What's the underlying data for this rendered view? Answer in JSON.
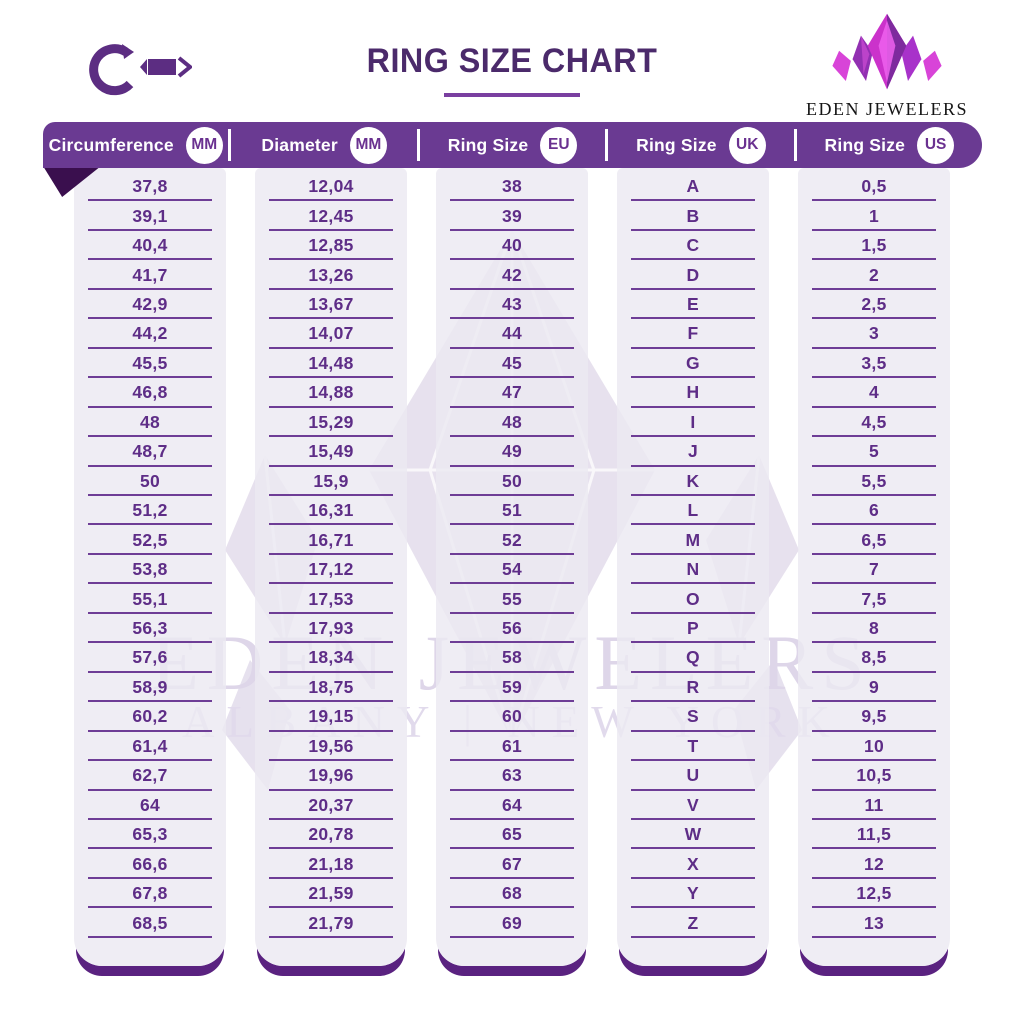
{
  "title": "RING SIZE CHART",
  "logo": {
    "name": "EDEN JEWELERS",
    "location": "ALBANY | NEW YORK"
  },
  "watermark": {
    "line1": "EDEN JEWELERS",
    "line2": "ALBANY | NEW YORK"
  },
  "colors": {
    "band_purple": "#6a3a92",
    "value_purple": "#5e2d87",
    "title_purple": "#4b2a6b",
    "fold_purple": "#3a0f4e",
    "panel_gray": "#eceaf1",
    "panel_shadow": "#5a2280",
    "brand_magenta": "#d844d8"
  },
  "chart_data": {
    "type": "table",
    "title": "RING SIZE CHART",
    "columns": [
      {
        "label": "Circumference",
        "unit": "MM",
        "values": [
          "37,8",
          "39,1",
          "40,4",
          "41,7",
          "42,9",
          "44,2",
          "45,5",
          "46,8",
          "48",
          "48,7",
          "50",
          "51,2",
          "52,5",
          "53,8",
          "55,1",
          "56,3",
          "57,6",
          "58,9",
          "60,2",
          "61,4",
          "62,7",
          "64",
          "65,3",
          "66,6",
          "67,8",
          "68,5"
        ]
      },
      {
        "label": "Diameter",
        "unit": "MM",
        "values": [
          "12,04",
          "12,45",
          "12,85",
          "13,26",
          "13,67",
          "14,07",
          "14,48",
          "14,88",
          "15,29",
          "15,49",
          "15,9",
          "16,31",
          "16,71",
          "17,12",
          "17,53",
          "17,93",
          "18,34",
          "18,75",
          "19,15",
          "19,56",
          "19,96",
          "20,37",
          "20,78",
          "21,18",
          "21,59",
          "21,79"
        ]
      },
      {
        "label": "Ring Size",
        "unit": "EU",
        "values": [
          "38",
          "39",
          "40",
          "42",
          "43",
          "44",
          "45",
          "47",
          "48",
          "49",
          "50",
          "51",
          "52",
          "54",
          "55",
          "56",
          "58",
          "59",
          "60",
          "61",
          "63",
          "64",
          "65",
          "67",
          "68",
          "69"
        ]
      },
      {
        "label": "Ring Size",
        "unit": "UK",
        "values": [
          "A",
          "B",
          "C",
          "D",
          "E",
          "F",
          "G",
          "H",
          "I",
          "J",
          "K",
          "L",
          "M",
          "N",
          "O",
          "P",
          "Q",
          "R",
          "S",
          "T",
          "U",
          "V",
          "W",
          "X",
          "Y",
          "Z"
        ]
      },
      {
        "label": "Ring Size",
        "unit": "US",
        "values": [
          "0,5",
          "1",
          "1,5",
          "2",
          "2,5",
          "3",
          "3,5",
          "4",
          "4,5",
          "5",
          "5,5",
          "6",
          "6,5",
          "7",
          "7,5",
          "8",
          "8,5",
          "9",
          "9,5",
          "10",
          "10,5",
          "11",
          "11,5",
          "12",
          "12,5",
          "13"
        ]
      }
    ]
  }
}
